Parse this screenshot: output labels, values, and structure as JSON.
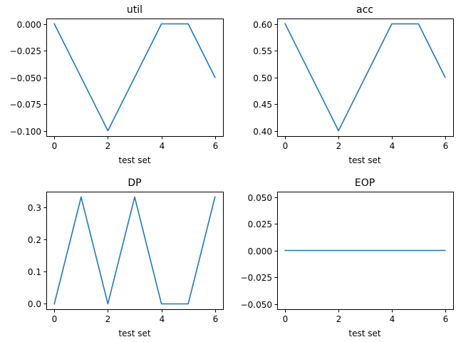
{
  "figure": {
    "background": "#ffffff",
    "line_color": "#1f77b4"
  },
  "chart_data": [
    {
      "type": "line",
      "title": "util",
      "xlabel": "test set",
      "ylabel": "",
      "x": [
        0,
        1,
        2,
        3,
        4,
        5,
        6
      ],
      "series": [
        {
          "values": [
            0.0,
            -0.05,
            -0.1,
            -0.05,
            0.0,
            0.0,
            -0.05
          ]
        }
      ],
      "xlim": [
        -0.3,
        6.3
      ],
      "ylim": [
        -0.105,
        0.005
      ],
      "xticks": [
        0,
        2,
        4,
        6
      ],
      "xtick_labels": [
        "0",
        "2",
        "4",
        "6"
      ],
      "yticks": [
        0.0,
        -0.025,
        -0.05,
        -0.075,
        -0.1
      ],
      "ytick_labels": [
        "0.000",
        "−0.025",
        "−0.050",
        "−0.075",
        "−0.100"
      ],
      "grid": false
    },
    {
      "type": "line",
      "title": "acc",
      "xlabel": "test set",
      "ylabel": "",
      "x": [
        0,
        1,
        2,
        3,
        4,
        5,
        6
      ],
      "series": [
        {
          "values": [
            0.6,
            0.5,
            0.4,
            0.5,
            0.6,
            0.6,
            0.5
          ]
        }
      ],
      "xlim": [
        -0.3,
        6.3
      ],
      "ylim": [
        0.39,
        0.61
      ],
      "xticks": [
        0,
        2,
        4,
        6
      ],
      "xtick_labels": [
        "0",
        "2",
        "4",
        "6"
      ],
      "yticks": [
        0.6,
        0.55,
        0.5,
        0.45,
        0.4
      ],
      "ytick_labels": [
        "0.60",
        "0.55",
        "0.50",
        "0.45",
        "0.40"
      ],
      "grid": false
    },
    {
      "type": "line",
      "title": "DP",
      "xlabel": "test set",
      "ylabel": "",
      "x": [
        0,
        1,
        2,
        3,
        4,
        5,
        6
      ],
      "series": [
        {
          "values": [
            0.0,
            0.3333,
            0.0,
            0.3333,
            0.0,
            0.0,
            0.3333
          ]
        }
      ],
      "xlim": [
        -0.3,
        6.3
      ],
      "ylim": [
        -0.0167,
        0.35
      ],
      "xticks": [
        0,
        2,
        4,
        6
      ],
      "xtick_labels": [
        "0",
        "2",
        "4",
        "6"
      ],
      "yticks": [
        0.3,
        0.2,
        0.1,
        0.0
      ],
      "ytick_labels": [
        "0.3",
        "0.2",
        "0.1",
        "0.0"
      ],
      "grid": false
    },
    {
      "type": "line",
      "title": "EOP",
      "xlabel": "test set",
      "ylabel": "",
      "x": [
        0,
        1,
        2,
        3,
        4,
        5,
        6
      ],
      "series": [
        {
          "values": [
            0.0,
            0.0,
            0.0,
            0.0,
            0.0,
            0.0,
            0.0
          ]
        }
      ],
      "xlim": [
        -0.3,
        6.3
      ],
      "ylim": [
        -0.055,
        0.055
      ],
      "xticks": [
        0,
        2,
        4,
        6
      ],
      "xtick_labels": [
        "0",
        "2",
        "4",
        "6"
      ],
      "yticks": [
        0.05,
        0.025,
        0.0,
        -0.025,
        -0.05
      ],
      "ytick_labels": [
        "0.050",
        "0.025",
        "0.000",
        "−0.025",
        "−0.050"
      ],
      "grid": false
    }
  ]
}
